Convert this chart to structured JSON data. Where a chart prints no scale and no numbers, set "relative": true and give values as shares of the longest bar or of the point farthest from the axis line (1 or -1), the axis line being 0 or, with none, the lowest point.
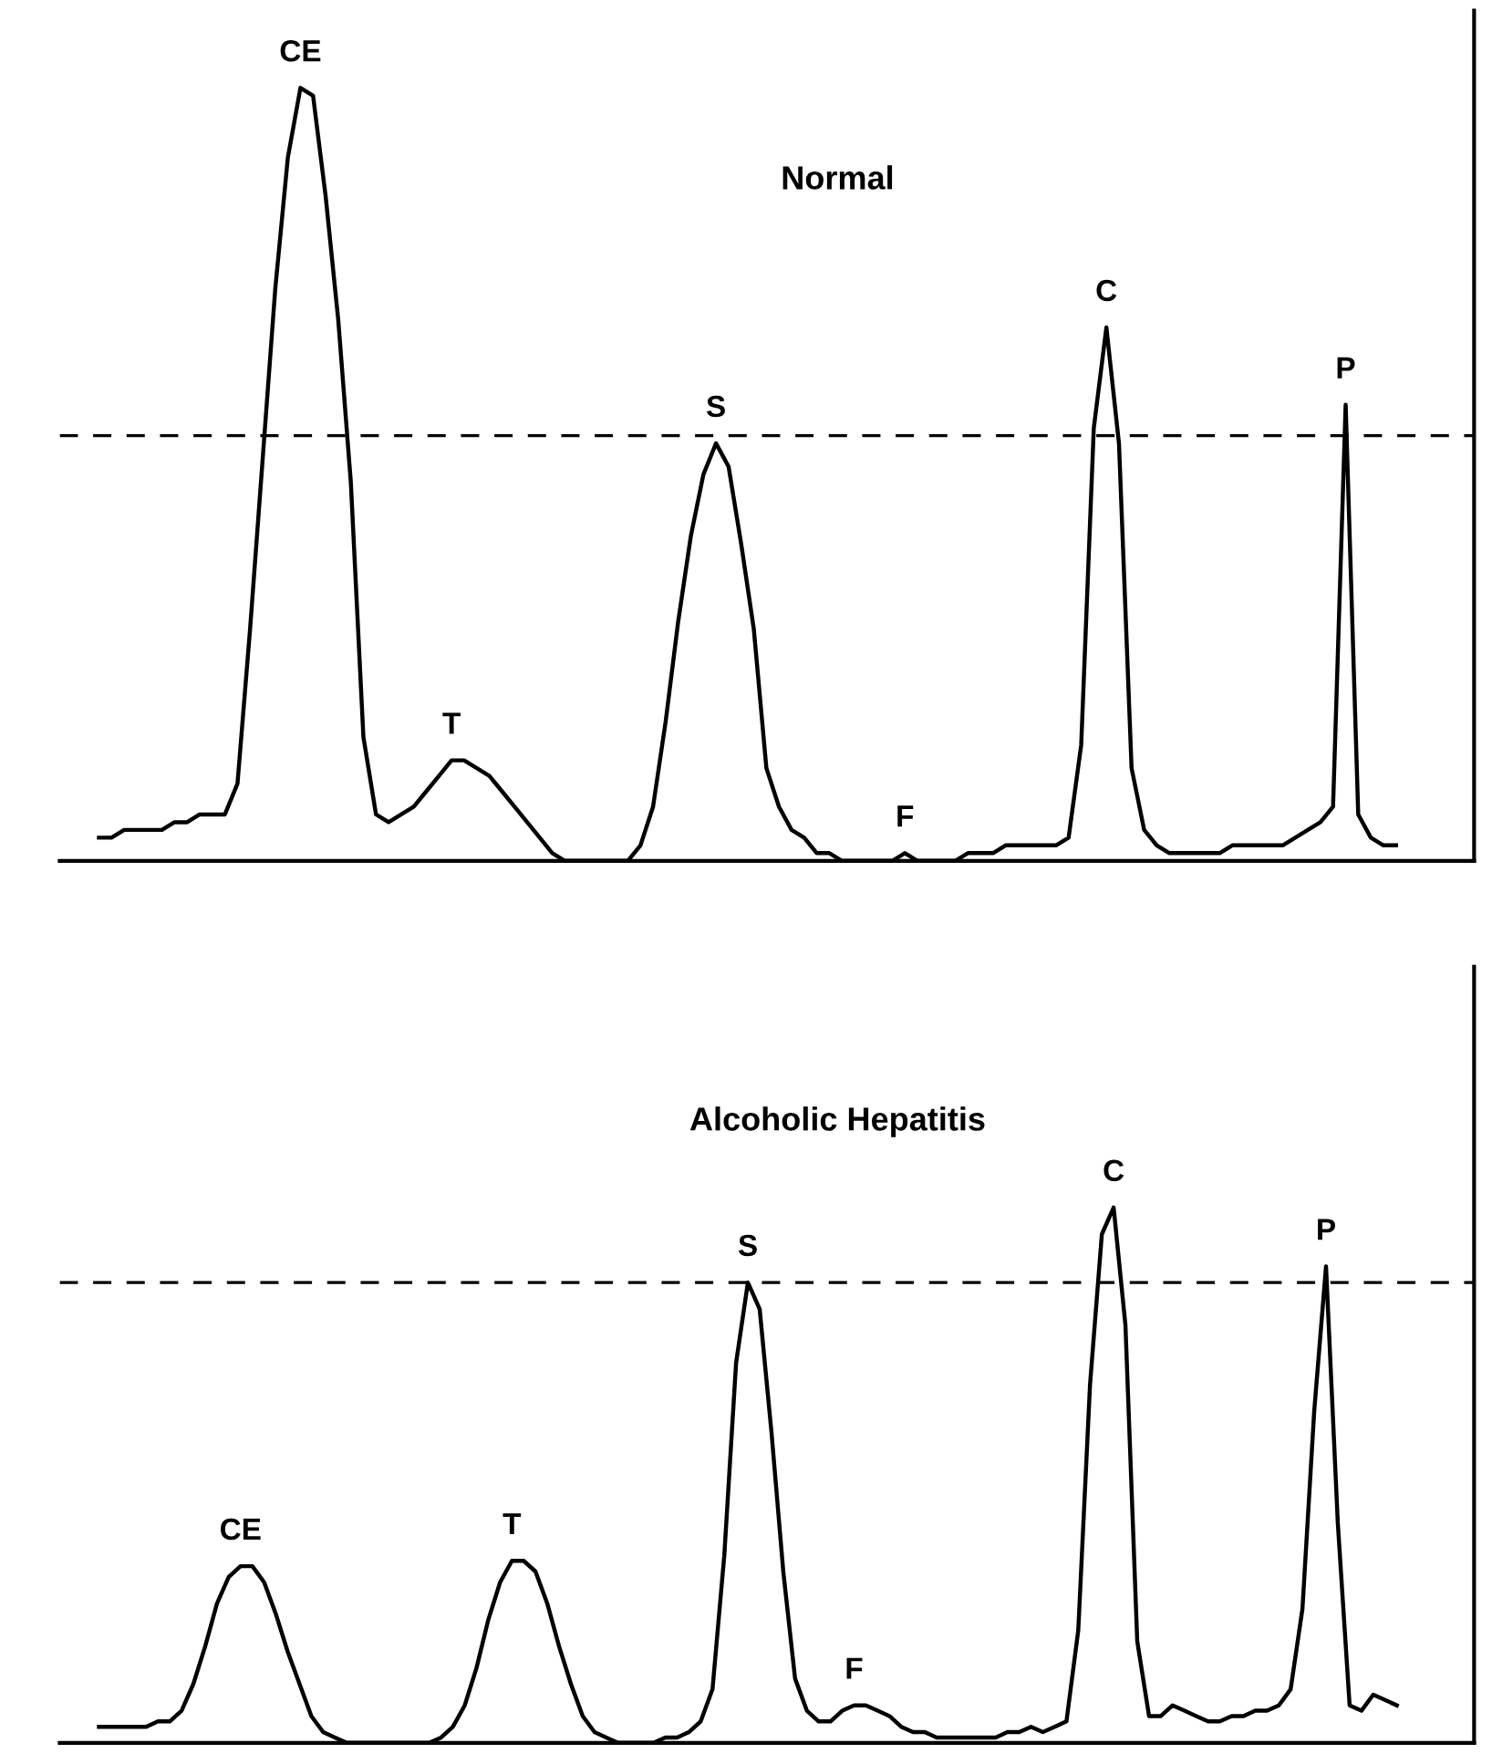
{
  "chart_data": [
    {
      "type": "line",
      "title": "Normal",
      "relative": true,
      "categories": [
        null,
        null,
        null,
        null,
        null,
        null,
        null,
        null,
        null,
        null,
        null,
        null,
        null,
        null,
        null,
        null,
        null,
        null,
        null,
        null,
        null,
        null,
        null,
        null,
        null,
        null,
        null,
        null,
        null,
        null,
        null,
        null,
        null,
        null,
        null,
        null,
        null,
        null,
        null,
        null,
        null,
        null,
        null,
        null,
        null,
        null,
        null,
        null,
        null,
        null,
        null,
        null,
        null,
        null,
        null,
        null,
        null,
        null,
        null,
        null,
        null,
        null,
        null,
        null,
        null,
        null,
        null,
        null,
        null,
        null,
        null,
        null,
        null,
        null,
        null,
        null,
        null,
        null,
        null,
        null,
        null,
        null,
        null,
        null,
        null,
        null,
        null,
        null,
        null,
        null,
        null,
        null,
        null,
        null,
        null,
        null,
        null,
        null,
        null,
        null,
        null,
        null,
        null,
        null
      ],
      "series": [
        {
          "color": "#000000",
          "line_style": "solid",
          "values": [
            0.03,
            0.03,
            0.04,
            0.04,
            0.04,
            0.04,
            0.05,
            0.05,
            0.06,
            0.06,
            0.06,
            0.1,
            0.3,
            0.52,
            0.74,
            0.91,
            1,
            0.99,
            0.86,
            0.7,
            0.49,
            0.16,
            0.06,
            0.05,
            0.06,
            0.07,
            0.09,
            0.11,
            0.13,
            0.13,
            0.12,
            0.11,
            0.09,
            0.07,
            0.05,
            0.03,
            0.01,
            0,
            0,
            0,
            0,
            0,
            0,
            0.02,
            0.07,
            0.18,
            0.31,
            0.42,
            0.5,
            0.54,
            0.51,
            0.41,
            0.3,
            0.12,
            0.07,
            0.04,
            0.03,
            0.01,
            0.01,
            0,
            0,
            0,
            0,
            0,
            0.01,
            0,
            0,
            0,
            0,
            0.01,
            0.01,
            0.01,
            0.02,
            0.02,
            0.02,
            0.02,
            0.02,
            0.03,
            0.15,
            0.56,
            0.69,
            0.54,
            0.12,
            0.04,
            0.02,
            0.01,
            0.01,
            0.01,
            0.01,
            0.01,
            0.02,
            0.02,
            0.02,
            0.02,
            0.02,
            0.03,
            0.04,
            0.05,
            0.07,
            0.59,
            0.06,
            0.03,
            0.02,
            0.02
          ]
        }
      ],
      "ref_lines": [
        {
          "axis": "y",
          "value": 0.55,
          "color": "#000000",
          "line_style": "dashed"
        }
      ],
      "annotations": [
        {
          "text": "CE",
          "y": 1
        },
        {
          "text": "T",
          "y": 0.13
        },
        {
          "text": "S",
          "y": 0.54
        },
        {
          "text": "F",
          "y": 0.01
        },
        {
          "text": "C",
          "y": 0.69
        },
        {
          "text": "P",
          "y": 0.59
        }
      ]
    },
    {
      "type": "line",
      "title": "Alcoholic Hepatitis",
      "relative": true,
      "categories": [
        null,
        null,
        null,
        null,
        null,
        null,
        null,
        null,
        null,
        null,
        null,
        null,
        null,
        null,
        null,
        null,
        null,
        null,
        null,
        null,
        null,
        null,
        null,
        null,
        null,
        null,
        null,
        null,
        null,
        null,
        null,
        null,
        null,
        null,
        null,
        null,
        null,
        null,
        null,
        null,
        null,
        null,
        null,
        null,
        null,
        null,
        null,
        null,
        null,
        null,
        null,
        null,
        null,
        null,
        null,
        null,
        null,
        null,
        null,
        null,
        null,
        null,
        null,
        null,
        null,
        null,
        null,
        null,
        null,
        null,
        null,
        null,
        null,
        null,
        null,
        null,
        null,
        null,
        null,
        null,
        null,
        null,
        null,
        null,
        null,
        null,
        null,
        null,
        null,
        null,
        null,
        null,
        null,
        null,
        null,
        null,
        null,
        null,
        null,
        null,
        null,
        null,
        null,
        null,
        null,
        null,
        null,
        null,
        null,
        null,
        null
      ],
      "series": [
        {
          "color": "#000000",
          "line_style": "solid",
          "values": [
            0.03,
            0.03,
            0.03,
            0.03,
            0.03,
            0.04,
            0.04,
            0.06,
            0.11,
            0.18,
            0.26,
            0.31,
            0.33,
            0.33,
            0.3,
            0.24,
            0.17,
            0.11,
            0.05,
            0.02,
            0.01,
            0,
            0,
            0,
            0,
            0,
            0,
            0,
            0,
            0.01,
            0.03,
            0.07,
            0.14,
            0.23,
            0.3,
            0.34,
            0.34,
            0.32,
            0.26,
            0.18,
            0.11,
            0.05,
            0.02,
            0.01,
            0,
            0,
            0,
            0,
            0.01,
            0.01,
            0.02,
            0.04,
            0.1,
            0.35,
            0.71,
            0.86,
            0.81,
            0.58,
            0.32,
            0.12,
            0.06,
            0.04,
            0.04,
            0.06,
            0.07,
            0.07,
            0.06,
            0.05,
            0.03,
            0.02,
            0.02,
            0.01,
            0.01,
            0.01,
            0.01,
            0.01,
            0.01,
            0.02,
            0.02,
            0.03,
            0.02,
            0.03,
            0.04,
            0.21,
            0.67,
            0.95,
            1,
            0.78,
            0.19,
            0.05,
            0.05,
            0.07,
            0.06,
            0.05,
            0.04,
            0.04,
            0.05,
            0.05,
            0.06,
            0.06,
            0.07,
            0.1,
            0.25,
            0.62,
            0.89,
            0.41,
            0.07,
            0.06,
            0.09,
            0.08,
            0.07
          ]
        }
      ],
      "ref_lines": [
        {
          "axis": "y",
          "value": 0.86,
          "color": "#000000",
          "line_style": "dashed"
        }
      ],
      "annotations": [
        {
          "text": "CE",
          "y": 0.33
        },
        {
          "text": "T",
          "y": 0.34
        },
        {
          "text": "S",
          "y": 0.86
        },
        {
          "text": "F",
          "y": 0.07
        },
        {
          "text": "C",
          "y": 1
        },
        {
          "text": "P",
          "y": 0.89
        }
      ]
    }
  ]
}
